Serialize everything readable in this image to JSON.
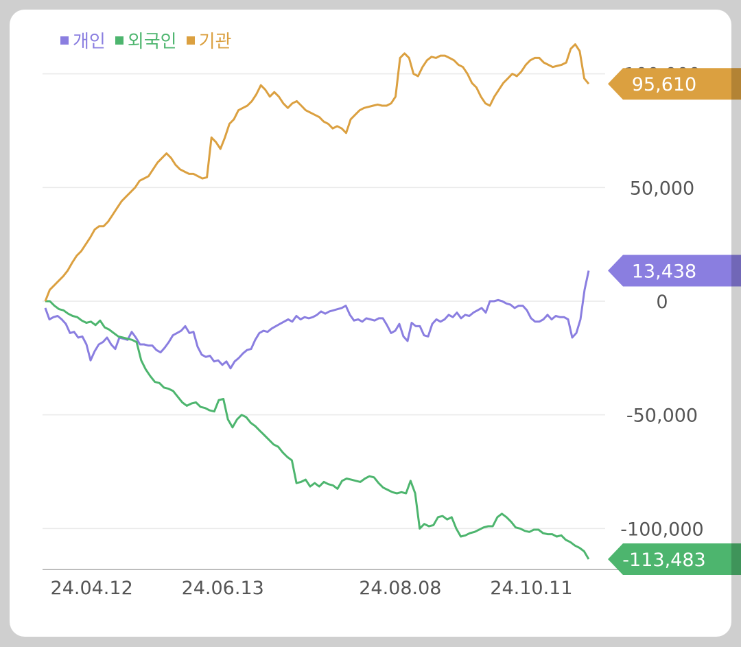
{
  "chart_data": {
    "type": "line",
    "x_labels": [
      "24.04.12",
      "24.06.13",
      "24.08.08",
      "24.10.11"
    ],
    "y_ticks": [
      "100,000",
      "50,000",
      "0",
      "-50,000",
      "-100,000"
    ],
    "y_tick_values": [
      100000,
      50000,
      0,
      -50000,
      -100000
    ],
    "ylim": [
      -118000,
      118000
    ],
    "grid": true,
    "legend_position": "top-left",
    "series": [
      {
        "name": "개인",
        "color": "#8a7ee0",
        "last_label": "13,438",
        "values": [
          -3000,
          -8000,
          -7000,
          -6500,
          -8000,
          -10000,
          -14000,
          -13500,
          -16000,
          -15500,
          -19000,
          -26000,
          -22000,
          -19000,
          -18000,
          -16000,
          -19000,
          -21000,
          -16000,
          -16500,
          -17000,
          -13500,
          -16000,
          -19000,
          -19000,
          -19500,
          -19500,
          -21500,
          -22500,
          -20500,
          -18000,
          -15000,
          -14000,
          -13000,
          -11000,
          -14000,
          -13500,
          -20000,
          -23500,
          -24500,
          -24000,
          -26500,
          -26000,
          -28000,
          -26500,
          -29500,
          -26500,
          -25000,
          -23000,
          -21500,
          -21000,
          -17000,
          -14000,
          -13000,
          -13500,
          -12000,
          -11000,
          -10000,
          -9000,
          -8000,
          -9000,
          -6500,
          -8000,
          -7000,
          -7500,
          -7000,
          -6000,
          -4500,
          -5500,
          -4500,
          -4000,
          -3500,
          -3000,
          -2000,
          -6000,
          -8500,
          -8000,
          -9000,
          -7500,
          -8000,
          -8500,
          -7500,
          -7500,
          -10500,
          -14000,
          -13000,
          -10000,
          -15500,
          -17500,
          -9500,
          -11000,
          -11000,
          -15000,
          -15500,
          -10000,
          -8000,
          -9000,
          -8000,
          -6000,
          -7000,
          -5000,
          -7500,
          -6000,
          -6500,
          -5000,
          -4000,
          -3000,
          -5000,
          0,
          0,
          500,
          0,
          -1000,
          -1500,
          -3000,
          -2000,
          -2000,
          -4000,
          -7500,
          -9000,
          -9000,
          -8000,
          -6000,
          -8000,
          -6500,
          -7000,
          -7000,
          -8000,
          -16000,
          -14000,
          -8000,
          5000,
          13438
        ]
      },
      {
        "name": "외국인",
        "color": "#4db56e",
        "last_label": "-113,483",
        "values": [
          0,
          0,
          -2000,
          -3500,
          -4000,
          -5500,
          -6500,
          -7000,
          -8500,
          -9500,
          -9000,
          -10500,
          -8500,
          -11500,
          -12500,
          -14000,
          -15500,
          -16000,
          -16500,
          -17000,
          -18000,
          -26000,
          -30000,
          -33000,
          -35500,
          -36000,
          -38000,
          -38500,
          -39500,
          -42000,
          -44500,
          -46000,
          -45000,
          -44500,
          -46500,
          -47000,
          -48000,
          -48500,
          -43500,
          -43000,
          -52000,
          -55500,
          -52000,
          -50000,
          -51000,
          -53500,
          -55000,
          -57000,
          -59000,
          -61000,
          -63000,
          -64000,
          -66500,
          -68500,
          -70000,
          -80000,
          -79500,
          -78500,
          -81500,
          -80000,
          -81500,
          -79500,
          -80500,
          -81000,
          -82500,
          -79000,
          -78000,
          -78500,
          -79000,
          -79500,
          -78000,
          -77000,
          -77500,
          -80000,
          -82000,
          -83000,
          -84000,
          -84500,
          -84000,
          -84500,
          -79000,
          -84500,
          -100000,
          -98000,
          -99000,
          -98500,
          -95000,
          -94500,
          -96000,
          -95000,
          -100000,
          -103500,
          -103000,
          -102000,
          -101500,
          -100500,
          -99500,
          -99000,
          -99000,
          -95000,
          -93500,
          -95000,
          -97000,
          -99500,
          -100000,
          -101000,
          -101500,
          -100500,
          -100500,
          -102000,
          -102500,
          -102500,
          -103500,
          -103000,
          -105000,
          -106000,
          -107500,
          -108500,
          -110000,
          -113483
        ]
      },
      {
        "name": "기관",
        "color": "#dba040",
        "last_label": "95,610",
        "values": [
          0,
          5000,
          7000,
          9000,
          11000,
          13500,
          17000,
          20000,
          22000,
          25000,
          28000,
          31500,
          33000,
          33000,
          35000,
          38000,
          41000,
          44000,
          46000,
          48000,
          50000,
          53000,
          54000,
          55000,
          58000,
          61000,
          63000,
          65000,
          63000,
          60000,
          58000,
          57000,
          56000,
          56000,
          55000,
          54000,
          54500,
          72000,
          70000,
          67000,
          72000,
          78000,
          80000,
          84000,
          85000,
          86000,
          88000,
          91000,
          95000,
          93000,
          90000,
          92000,
          90000,
          87000,
          85000,
          87000,
          88000,
          86000,
          84000,
          83000,
          82000,
          81000,
          79000,
          78000,
          76000,
          77000,
          76000,
          74000,
          80000,
          82000,
          84000,
          85000,
          85500,
          86000,
          86500,
          86000,
          86000,
          87000,
          90000,
          107000,
          109000,
          107000,
          100000,
          99000,
          103000,
          106000,
          107500,
          107000,
          108000,
          108000,
          107000,
          106000,
          104000,
          103000,
          100000,
          96000,
          94000,
          90000,
          87000,
          86000,
          90000,
          93000,
          96000,
          98000,
          100000,
          99000,
          101000,
          104000,
          106000,
          107000,
          107000,
          105000,
          104000,
          103000,
          103500,
          104000,
          105000,
          111000,
          113000,
          110000,
          98000,
          95610
        ]
      }
    ]
  }
}
